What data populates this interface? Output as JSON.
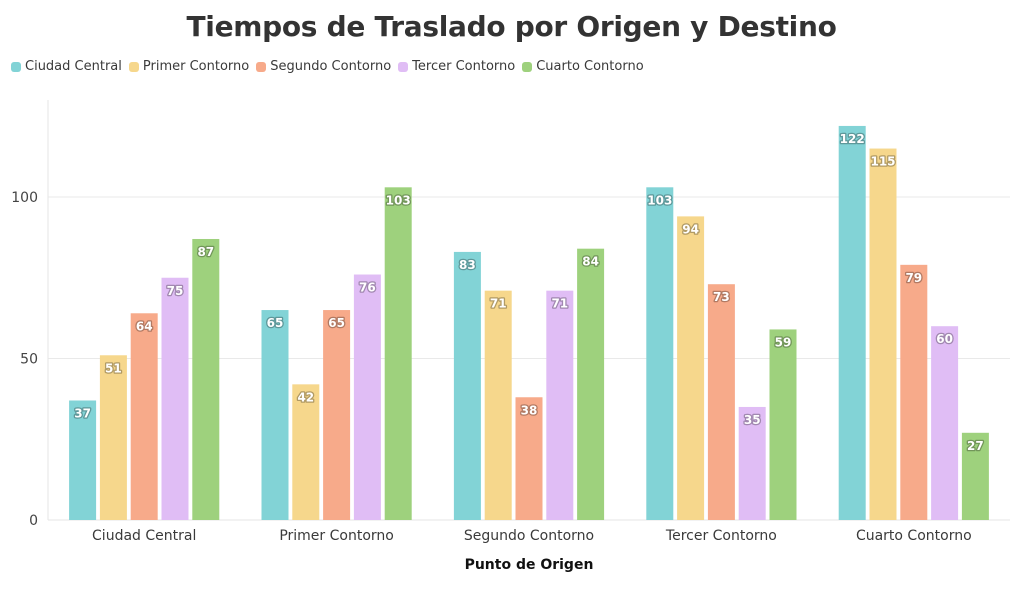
{
  "chart_data": {
    "type": "bar",
    "title": "Tiempos de Traslado por Origen y Destino",
    "xlabel": "Punto de Origen",
    "ylabel": "",
    "ylim": [
      0,
      130
    ],
    "yticks": [
      0,
      50,
      100
    ],
    "grid": true,
    "legend_position": "top-left",
    "categories": [
      "Ciudad Central",
      "Primer Contorno",
      "Segundo Contorno",
      "Tercer Contorno",
      "Cuarto Contorno"
    ],
    "series": [
      {
        "name": "Ciudad Central",
        "color": "#82d3d6",
        "values": [
          37,
          65,
          83,
          103,
          122
        ]
      },
      {
        "name": "Primer Contorno",
        "color": "#f6d78c",
        "values": [
          51,
          42,
          71,
          94,
          115
        ]
      },
      {
        "name": "Segundo Contorno",
        "color": "#f7aa8a",
        "values": [
          64,
          65,
          38,
          73,
          79
        ]
      },
      {
        "name": "Tercer Contorno",
        "color": "#e0bdf5",
        "values": [
          75,
          76,
          71,
          35,
          60
        ]
      },
      {
        "name": "Cuarto Contorno",
        "color": "#9ed17d",
        "values": [
          87,
          103,
          84,
          59,
          27
        ]
      }
    ]
  }
}
